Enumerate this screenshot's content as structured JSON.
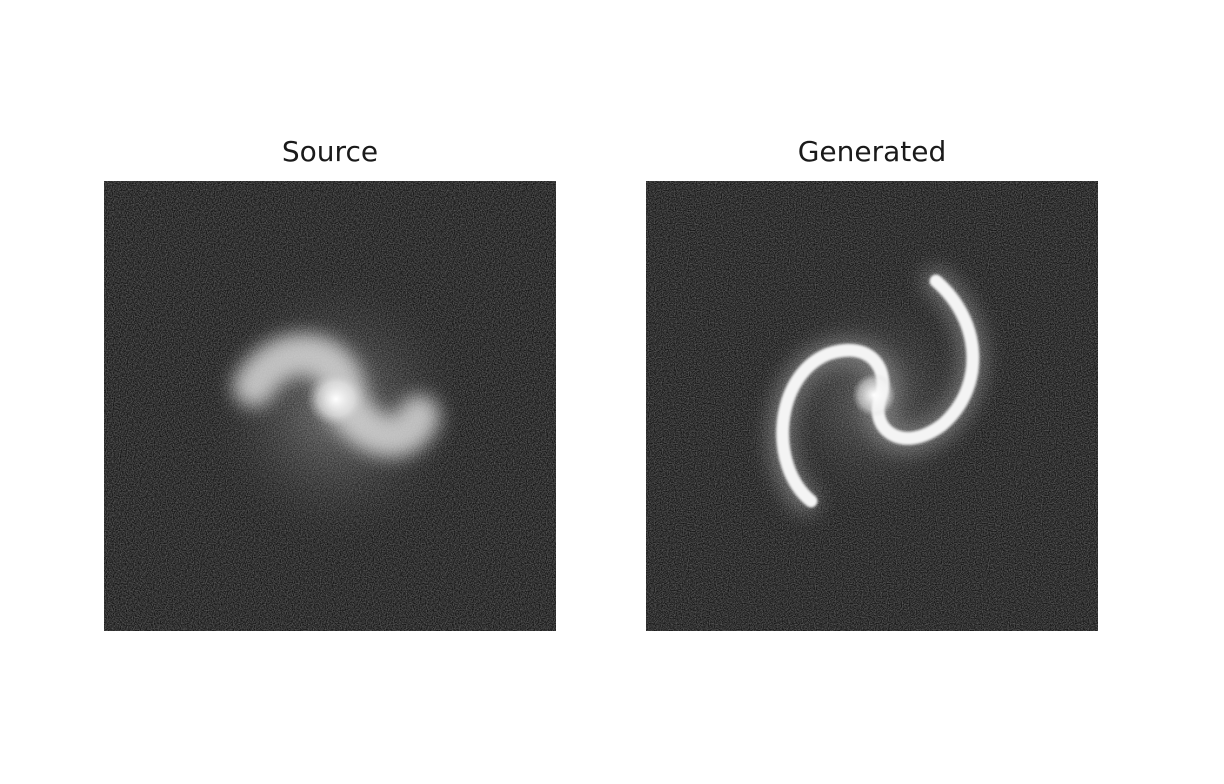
{
  "figure": {
    "panels": [
      {
        "title": "Source",
        "image": "blurry-spiral-galaxy"
      },
      {
        "title": "Generated",
        "image": "sharp-two-armed-spiral-galaxy"
      }
    ],
    "colormap": "grayscale"
  }
}
